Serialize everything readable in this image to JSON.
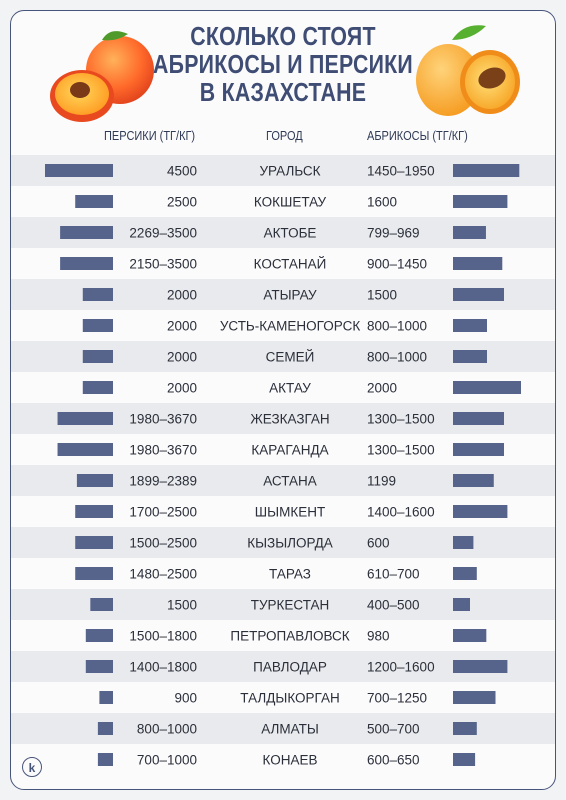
{
  "title_lines": [
    "СКОЛЬКО СТОЯТ",
    "АБРИКОСЫ И ПЕРСИКИ",
    "В КАЗАХСТАНЕ"
  ],
  "headers": {
    "peaches": "ПЕРСИКИ (ТГ/КГ)",
    "city": "ГОРОД",
    "apricots": "АБРИКОСЫ (ТГ/КГ)"
  },
  "logo_text": "k",
  "colors": {
    "bar": "#56638b",
    "stripe": "#e9eaed",
    "title": "#3f4d74",
    "frame": "#48557a"
  },
  "chart_data": {
    "type": "bar",
    "layout": "butterfly",
    "categories": [
      "УРАЛЬСК",
      "КОКШЕТАУ",
      "АКТОБЕ",
      "КОСТАНАЙ",
      "АТЫРАУ",
      "УСТЬ-КАМЕНОГОРСК",
      "СЕМЕЙ",
      "АКТАУ",
      "ЖЕЗКАЗГАН",
      "КАРАГАНДА",
      "АСТАНА",
      "ШЫМКЕНТ",
      "КЫЗЫЛОРДА",
      "ТАРАЗ",
      "ТУРКЕСТАН",
      "ПЕТРОПАВЛОВСК",
      "ПАВЛОДАР",
      "ТАЛДЫКОРГАН",
      "АЛМАТЫ",
      "КОНАЕВ"
    ],
    "series": [
      {
        "name": "ПЕРСИКИ (ТГ/КГ)",
        "side": "left",
        "labels": [
          "4500",
          "2500",
          "2269–3500",
          "2150–3500",
          "2000",
          "2000",
          "2000",
          "2000",
          "1980–3670",
          "1980–3670",
          "1899–2389",
          "1700–2500",
          "1500–2500",
          "1480–2500",
          "1500",
          "1500–1800",
          "1400–1800",
          "900",
          "800–1000",
          "700–1000"
        ],
        "values": [
          4500,
          2500,
          3500,
          3500,
          2000,
          2000,
          2000,
          2000,
          3670,
          3670,
          2389,
          2500,
          2500,
          2500,
          1500,
          1800,
          1800,
          900,
          1000,
          1000
        ]
      },
      {
        "name": "АБРИКОСЫ (ТГ/КГ)",
        "side": "right",
        "labels": [
          "1450–1950",
          "1600",
          "799–969",
          "900–1450",
          "1500",
          "800–1000",
          "800–1000",
          "2000",
          "1300–1500",
          "1300–1500",
          "1199",
          "1400–1600",
          "600",
          "610–700",
          "400–500",
          "980",
          "1200–1600",
          "700–1250",
          "500–700",
          "600–650"
        ],
        "values": [
          1950,
          1600,
          969,
          1450,
          1500,
          1000,
          1000,
          2000,
          1500,
          1500,
          1199,
          1600,
          600,
          700,
          500,
          980,
          1600,
          1250,
          700,
          650
        ]
      }
    ]
  }
}
